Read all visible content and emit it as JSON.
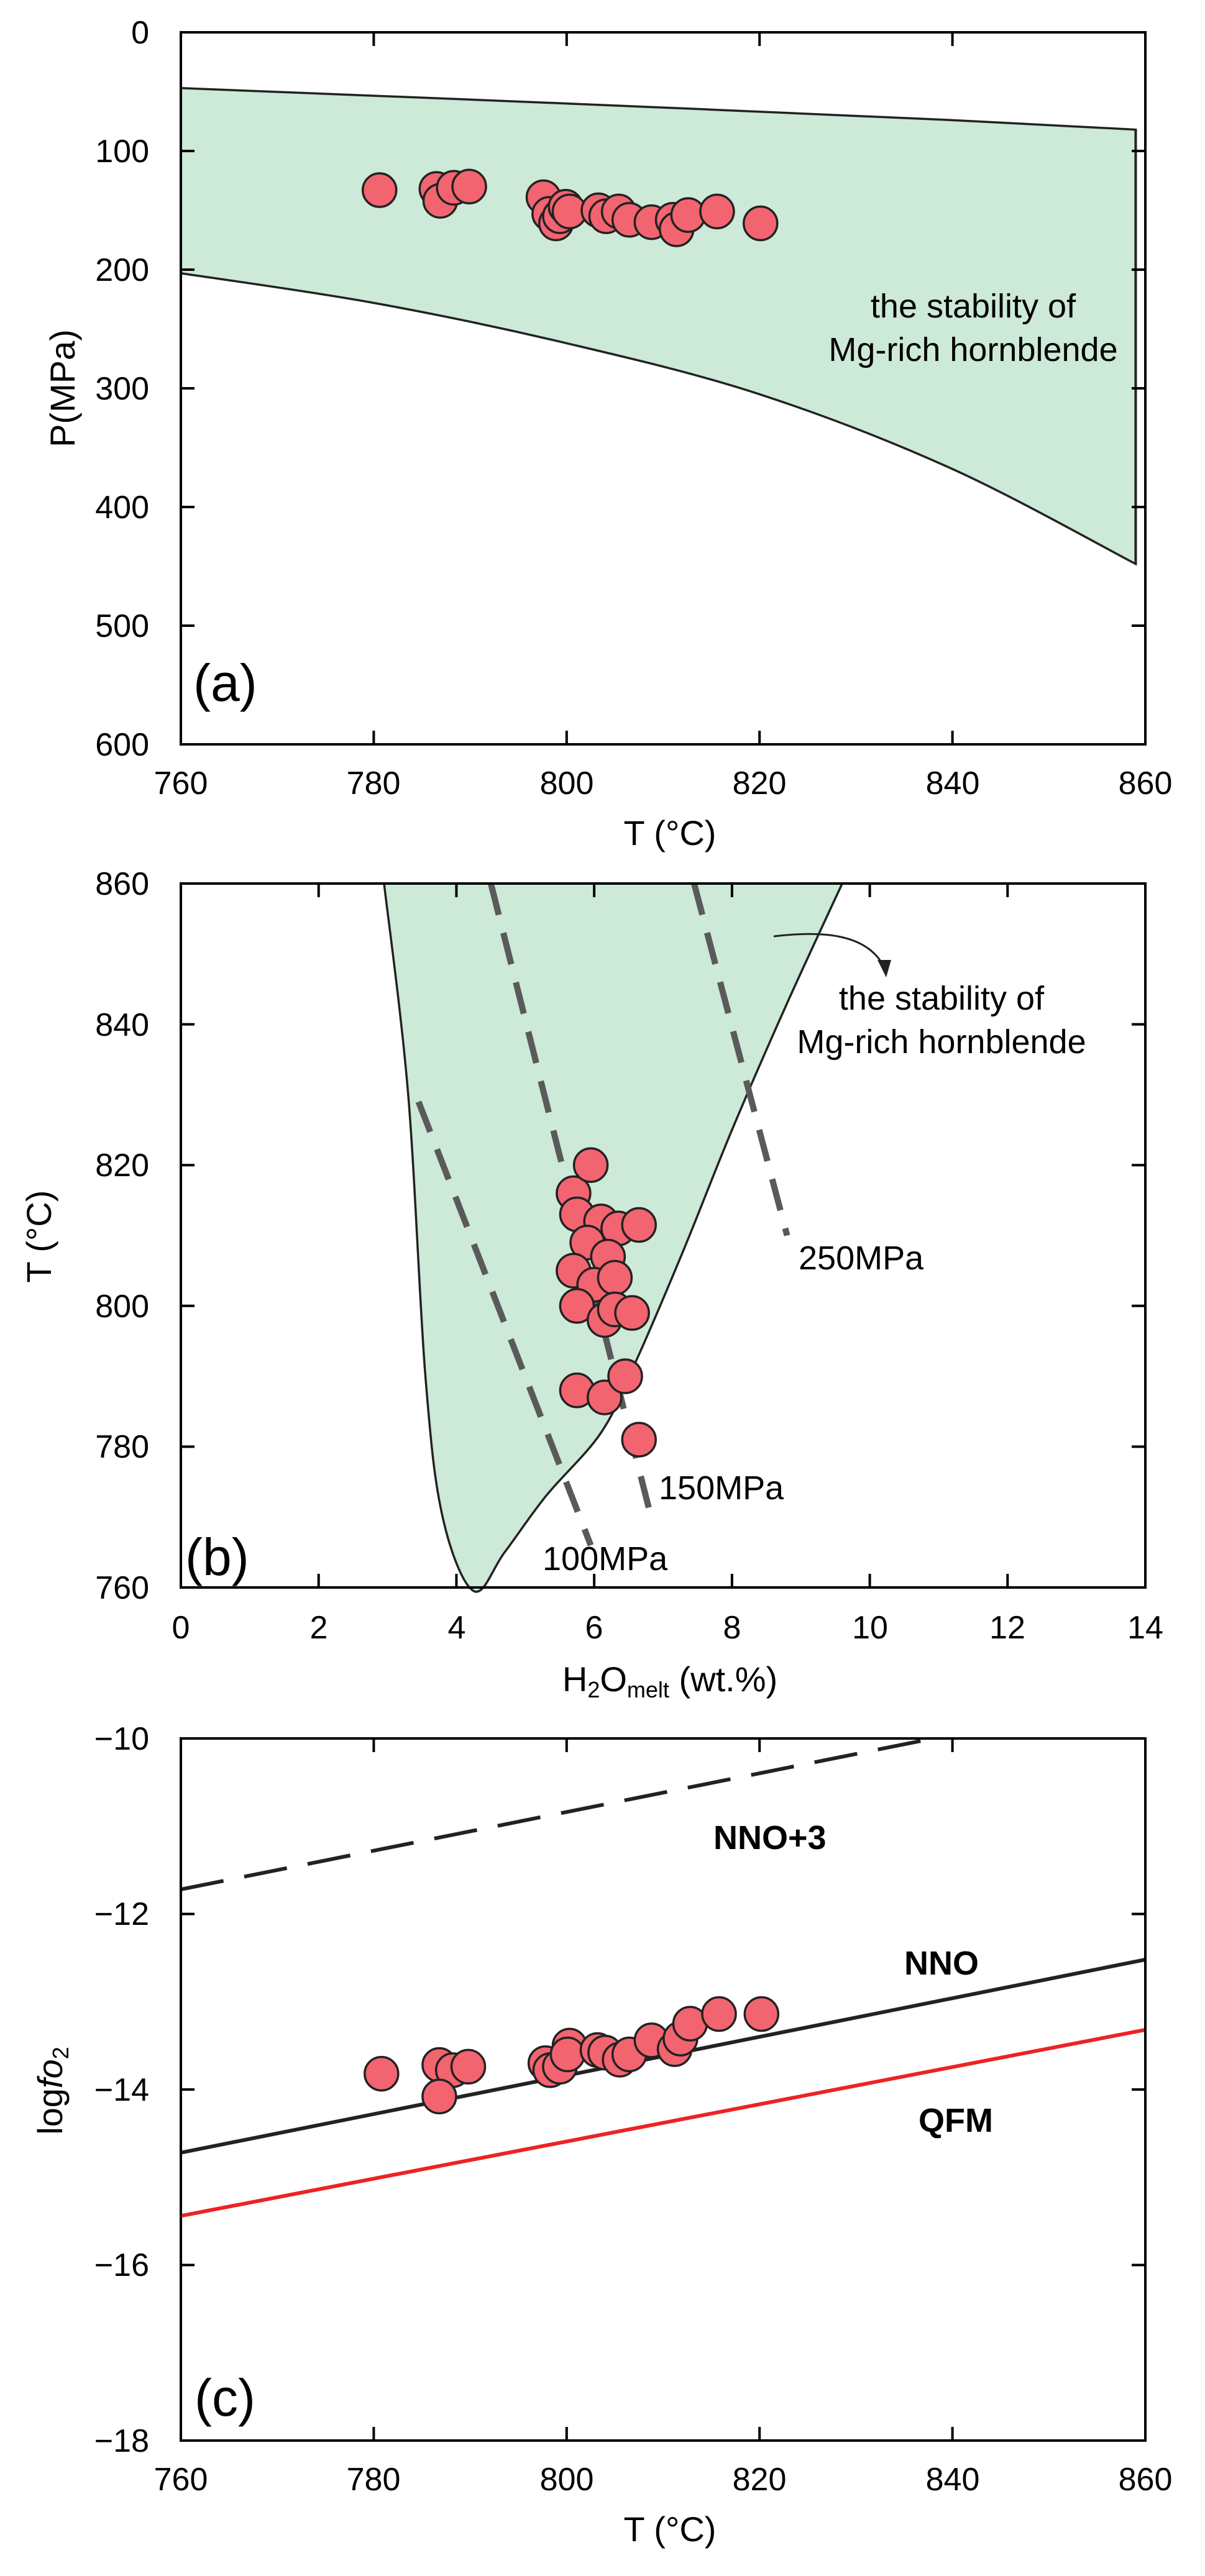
{
  "colors": {
    "field": "#cde9d7",
    "marker": "#f26470",
    "qfm": "#ee2222",
    "dash": "#5a5a5a",
    "line": "#222222"
  },
  "chart_data": [
    {
      "type": "scatter",
      "panel": "(a)",
      "xlabel": "T (°C)",
      "ylabel": "P(MPa)",
      "xlim": [
        760,
        860
      ],
      "ylim": [
        600,
        0
      ],
      "xticks": [
        "760",
        "780",
        "800",
        "820",
        "840",
        "860"
      ],
      "yticks": [
        "0",
        "100",
        "200",
        "300",
        "400",
        "500",
        "600"
      ],
      "field_label": [
        "the stability of",
        "Mg-rich hornblende"
      ],
      "field_upper": [
        [
          760,
          47
        ],
        [
          800,
          60
        ],
        [
          840,
          74
        ],
        [
          859,
          82
        ]
      ],
      "field_lower": [
        [
          760,
          203
        ],
        [
          780,
          228
        ],
        [
          800,
          262
        ],
        [
          820,
          305
        ],
        [
          840,
          368
        ],
        [
          859,
          448
        ]
      ],
      "points": [
        [
          780.6,
          133
        ],
        [
          786.5,
          132
        ],
        [
          786.9,
          142
        ],
        [
          788.3,
          131
        ],
        [
          789.9,
          130
        ],
        [
          797.6,
          139
        ],
        [
          798.2,
          153
        ],
        [
          798.9,
          161
        ],
        [
          799.3,
          155
        ],
        [
          799.9,
          147
        ],
        [
          800.3,
          151
        ],
        [
          803.3,
          150
        ],
        [
          804.1,
          155
        ],
        [
          805.4,
          151
        ],
        [
          806.5,
          158
        ],
        [
          808.8,
          160
        ],
        [
          811.0,
          158
        ],
        [
          811.4,
          166
        ],
        [
          812.6,
          154
        ],
        [
          815.6,
          151
        ],
        [
          820.1,
          161
        ]
      ]
    },
    {
      "type": "scatter",
      "panel": "(b)",
      "xlabel_main": "H",
      "xlabel_sub1": "2",
      "xlabel_mid": "O",
      "xlabel_sub2": "melt",
      "xlabel_end": " (wt.%)",
      "ylabel": "T (°C)",
      "xlim": [
        0,
        14
      ],
      "ylim": [
        760,
        860
      ],
      "xticks": [
        "0",
        "2",
        "4",
        "6",
        "8",
        "10",
        "12",
        "14"
      ],
      "yticks": [
        "760",
        "780",
        "800",
        "820",
        "840",
        "860"
      ],
      "field_label": [
        "the stability of",
        "Mg-rich hornblende"
      ],
      "field_boundary": [
        [
          2.95,
          860
        ],
        [
          3.3,
          830
        ],
        [
          3.55,
          790
        ],
        [
          3.8,
          770
        ],
        [
          4.25,
          759.5
        ],
        [
          4.7,
          765
        ],
        [
          5.3,
          773
        ],
        [
          6.1,
          782
        ],
        [
          6.6,
          792
        ],
        [
          7.3,
          808
        ],
        [
          8.0,
          825
        ],
        [
          8.8,
          843
        ],
        [
          9.6,
          860
        ]
      ],
      "isobars": [
        {
          "label": "100MPa",
          "points": [
            [
              3.45,
              829
            ],
            [
              5.95,
              766
            ]
          ]
        },
        {
          "label": "150MPa",
          "points": [
            [
              4.5,
              860
            ],
            [
              6.8,
              771
            ]
          ]
        },
        {
          "label": "250MPa",
          "points": [
            [
              7.45,
              860
            ],
            [
              8.8,
              810
            ]
          ]
        }
      ],
      "points": [
        [
          5.7,
          816
        ],
        [
          5.95,
          820
        ],
        [
          5.75,
          813
        ],
        [
          6.1,
          812
        ],
        [
          6.35,
          811
        ],
        [
          6.65,
          811.5
        ],
        [
          5.9,
          809
        ],
        [
          6.2,
          807
        ],
        [
          5.7,
          805
        ],
        [
          6.0,
          803
        ],
        [
          6.3,
          804
        ],
        [
          5.75,
          800
        ],
        [
          6.15,
          798
        ],
        [
          6.3,
          799.5
        ],
        [
          6.55,
          799
        ],
        [
          5.75,
          788
        ],
        [
          6.15,
          787
        ],
        [
          6.45,
          790
        ],
        [
          6.65,
          781
        ]
      ]
    },
    {
      "type": "scatter",
      "panel": "(c)",
      "xlabel": "T (°C)",
      "ylabel_pre": "log",
      "ylabel_italic": "fo",
      "ylabel_sub": "2",
      "xlim": [
        760,
        860
      ],
      "ylim": [
        -18,
        -10
      ],
      "xticks": [
        "760",
        "780",
        "800",
        "820",
        "840",
        "860"
      ],
      "yticks": [
        "−10",
        "−12",
        "−14",
        "−16",
        "−18"
      ],
      "lines": [
        {
          "label": "NNO+3",
          "style": "dashed",
          "points": [
            [
              760,
              -11.72
            ],
            [
              838,
              -10.0
            ]
          ]
        },
        {
          "label": "NNO",
          "style": "solid",
          "points": [
            [
              760,
              -14.72
            ],
            [
              860,
              -12.52
            ]
          ]
        },
        {
          "label": "QFM",
          "style": "solid-red",
          "points": [
            [
              760,
              -15.44
            ],
            [
              860,
              -13.32
            ]
          ]
        }
      ],
      "points": [
        [
          780.8,
          -13.82
        ],
        [
          786.8,
          -13.72
        ],
        [
          788.2,
          -13.78
        ],
        [
          786.8,
          -14.08
        ],
        [
          789.8,
          -13.74
        ],
        [
          797.8,
          -13.7
        ],
        [
          798.3,
          -13.78
        ],
        [
          799.3,
          -13.74
        ],
        [
          800.3,
          -13.5
        ],
        [
          800.1,
          -13.6
        ],
        [
          803.2,
          -13.55
        ],
        [
          804.0,
          -13.58
        ],
        [
          805.5,
          -13.66
        ],
        [
          806.5,
          -13.6
        ],
        [
          808.8,
          -13.44
        ],
        [
          811.2,
          -13.54
        ],
        [
          811.8,
          -13.42
        ],
        [
          812.8,
          -13.25
        ],
        [
          815.8,
          -13.14
        ],
        [
          820.2,
          -13.14
        ]
      ]
    }
  ]
}
